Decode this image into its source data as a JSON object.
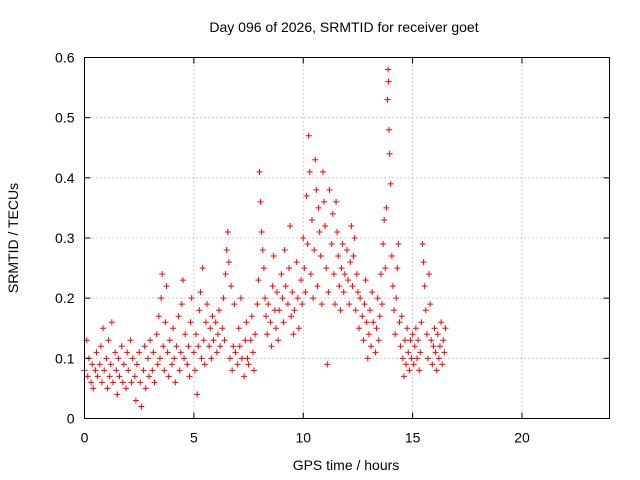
{
  "chart_data": {
    "type": "scatter",
    "title": "Day 096 of 2026, SRMTID for receiver goet",
    "xlabel": "GPS time / hours",
    "ylabel": "SRMTID / TECUs",
    "xlim": [
      0,
      24
    ],
    "ylim": [
      0,
      0.6
    ],
    "x_ticks": [
      0,
      5,
      10,
      15,
      20
    ],
    "x_tick_labels": [
      "0",
      "5",
      "10",
      "15",
      "20"
    ],
    "y_ticks": [
      0,
      0.1,
      0.2,
      0.3,
      0.4,
      0.5,
      0.6
    ],
    "y_tick_labels": [
      "0",
      "0.1",
      "0.2",
      "0.3",
      "0.4",
      "0.5",
      "0.6"
    ],
    "grid": true,
    "marker": "+",
    "color": "#ff0000",
    "series": [
      {
        "name": "SRMTID",
        "points": [
          [
            0.0,
            0.08
          ],
          [
            0.1,
            0.13
          ],
          [
            0.15,
            0.07
          ],
          [
            0.2,
            0.1
          ],
          [
            0.3,
            0.06
          ],
          [
            0.35,
            0.09
          ],
          [
            0.4,
            0.05
          ],
          [
            0.5,
            0.08
          ],
          [
            0.55,
            0.11
          ],
          [
            0.6,
            0.07
          ],
          [
            0.7,
            0.09
          ],
          [
            0.75,
            0.12
          ],
          [
            0.8,
            0.06
          ],
          [
            0.85,
            0.15
          ],
          [
            0.9,
            0.08
          ],
          [
            1.0,
            0.1
          ],
          [
            1.05,
            0.05
          ],
          [
            1.1,
            0.13
          ],
          [
            1.15,
            0.07
          ],
          [
            1.2,
            0.09
          ],
          [
            1.25,
            0.16
          ],
          [
            1.3,
            0.06
          ],
          [
            1.4,
            0.11
          ],
          [
            1.45,
            0.08
          ],
          [
            1.5,
            0.04
          ],
          [
            1.55,
            0.1
          ],
          [
            1.6,
            0.07
          ],
          [
            1.7,
            0.12
          ],
          [
            1.75,
            0.06
          ],
          [
            1.8,
            0.09
          ],
          [
            1.9,
            0.05
          ],
          [
            1.95,
            0.11
          ],
          [
            2.0,
            0.08
          ],
          [
            2.1,
            0.13
          ],
          [
            2.15,
            0.06
          ],
          [
            2.2,
            0.1
          ],
          [
            2.3,
            0.07
          ],
          [
            2.35,
            0.03
          ],
          [
            2.4,
            0.09
          ],
          [
            2.5,
            0.11
          ],
          [
            2.55,
            0.06
          ],
          [
            2.6,
            0.02
          ],
          [
            2.7,
            0.08
          ],
          [
            2.75,
            0.12
          ],
          [
            2.8,
            0.05
          ],
          [
            2.9,
            0.1
          ],
          [
            2.95,
            0.07
          ],
          [
            3.0,
            0.13
          ],
          [
            3.1,
            0.08
          ],
          [
            3.15,
            0.11
          ],
          [
            3.2,
            0.06
          ],
          [
            3.3,
            0.14
          ],
          [
            3.35,
            0.09
          ],
          [
            3.4,
            0.17
          ],
          [
            3.45,
            0.1
          ],
          [
            3.5,
            0.2
          ],
          [
            3.55,
            0.24
          ],
          [
            3.6,
            0.12
          ],
          [
            3.65,
            0.08
          ],
          [
            3.7,
            0.16
          ],
          [
            3.75,
            0.22
          ],
          [
            3.8,
            0.11
          ],
          [
            3.85,
            0.07
          ],
          [
            3.9,
            0.13
          ],
          [
            4.0,
            0.09
          ],
          [
            4.05,
            0.15
          ],
          [
            4.1,
            0.1
          ],
          [
            4.15,
            0.06
          ],
          [
            4.2,
            0.12
          ],
          [
            4.3,
            0.17
          ],
          [
            4.35,
            0.08
          ],
          [
            4.4,
            0.11
          ],
          [
            4.45,
            0.19
          ],
          [
            4.5,
            0.23
          ],
          [
            4.55,
            0.1
          ],
          [
            4.6,
            0.14
          ],
          [
            4.7,
            0.09
          ],
          [
            4.75,
            0.12
          ],
          [
            4.8,
            0.07
          ],
          [
            4.85,
            0.16
          ],
          [
            4.9,
            0.2
          ],
          [
            5.0,
            0.11
          ],
          [
            5.05,
            0.08
          ],
          [
            5.1,
            0.14
          ],
          [
            5.15,
            0.04
          ],
          [
            5.2,
            0.12
          ],
          [
            5.25,
            0.18
          ],
          [
            5.3,
            0.21
          ],
          [
            5.35,
            0.1
          ],
          [
            5.4,
            0.25
          ],
          [
            5.45,
            0.13
          ],
          [
            5.5,
            0.09
          ],
          [
            5.55,
            0.16
          ],
          [
            5.6,
            0.19
          ],
          [
            5.7,
            0.12
          ],
          [
            5.75,
            0.15
          ],
          [
            5.8,
            0.1
          ],
          [
            5.85,
            0.17
          ],
          [
            5.9,
            0.13
          ],
          [
            6.0,
            0.16
          ],
          [
            6.05,
            0.11
          ],
          [
            6.1,
            0.14
          ],
          [
            6.15,
            0.18
          ],
          [
            6.2,
            0.12
          ],
          [
            6.3,
            0.15
          ],
          [
            6.35,
            0.2
          ],
          [
            6.4,
            0.13
          ],
          [
            6.45,
            0.24
          ],
          [
            6.5,
            0.28
          ],
          [
            6.55,
            0.31
          ],
          [
            6.6,
            0.26
          ],
          [
            6.65,
            0.1
          ],
          [
            6.7,
            0.22
          ],
          [
            6.75,
            0.08
          ],
          [
            6.8,
            0.12
          ],
          [
            6.85,
            0.19
          ],
          [
            6.9,
            0.11
          ],
          [
            7.0,
            0.09
          ],
          [
            7.05,
            0.15
          ],
          [
            7.1,
            0.12
          ],
          [
            7.15,
            0.2
          ],
          [
            7.2,
            0.1
          ],
          [
            7.3,
            0.07
          ],
          [
            7.35,
            0.13
          ],
          [
            7.4,
            0.16
          ],
          [
            7.45,
            0.1
          ],
          [
            7.5,
            0.09
          ],
          [
            7.6,
            0.13
          ],
          [
            7.65,
            0.17
          ],
          [
            7.7,
            0.11
          ],
          [
            7.75,
            0.08
          ],
          [
            7.8,
            0.14
          ],
          [
            7.9,
            0.19
          ],
          [
            7.95,
            0.23
          ],
          [
            8.0,
            0.41
          ],
          [
            8.05,
            0.36
          ],
          [
            8.1,
            0.31
          ],
          [
            8.15,
            0.28
          ],
          [
            8.2,
            0.25
          ],
          [
            8.25,
            0.2
          ],
          [
            8.3,
            0.17
          ],
          [
            8.35,
            0.14
          ],
          [
            8.4,
            0.19
          ],
          [
            8.5,
            0.16
          ],
          [
            8.55,
            0.12
          ],
          [
            8.6,
            0.22
          ],
          [
            8.65,
            0.27
          ],
          [
            8.7,
            0.18
          ],
          [
            8.75,
            0.15
          ],
          [
            8.8,
            0.21
          ],
          [
            8.85,
            0.13
          ],
          [
            8.9,
            0.18
          ],
          [
            9.0,
            0.24
          ],
          [
            9.05,
            0.2
          ],
          [
            9.1,
            0.16
          ],
          [
            9.15,
            0.28
          ],
          [
            9.2,
            0.22
          ],
          [
            9.3,
            0.19
          ],
          [
            9.35,
            0.25
          ],
          [
            9.4,
            0.32
          ],
          [
            9.45,
            0.17
          ],
          [
            9.5,
            0.21
          ],
          [
            9.55,
            0.14
          ],
          [
            9.6,
            0.18
          ],
          [
            9.7,
            0.26
          ],
          [
            9.75,
            0.2
          ],
          [
            9.8,
            0.15
          ],
          [
            9.9,
            0.23
          ],
          [
            9.95,
            0.19
          ],
          [
            10.0,
            0.3
          ],
          [
            10.05,
            0.25
          ],
          [
            10.1,
            0.21
          ],
          [
            10.15,
            0.37
          ],
          [
            10.2,
            0.29
          ],
          [
            10.25,
            0.47
          ],
          [
            10.3,
            0.41
          ],
          [
            10.35,
            0.24
          ],
          [
            10.4,
            0.33
          ],
          [
            10.45,
            0.2
          ],
          [
            10.5,
            0.28
          ],
          [
            10.55,
            0.43
          ],
          [
            10.6,
            0.38
          ],
          [
            10.65,
            0.22
          ],
          [
            10.7,
            0.35
          ],
          [
            10.75,
            0.31
          ],
          [
            10.8,
            0.27
          ],
          [
            10.85,
            0.19
          ],
          [
            10.9,
            0.41
          ],
          [
            10.95,
            0.36
          ],
          [
            11.0,
            0.32
          ],
          [
            11.05,
            0.25
          ],
          [
            11.1,
            0.09
          ],
          [
            11.15,
            0.21
          ],
          [
            11.2,
            0.38
          ],
          [
            11.3,
            0.29
          ],
          [
            11.35,
            0.34
          ],
          [
            11.4,
            0.24
          ],
          [
            11.45,
            0.19
          ],
          [
            11.5,
            0.36
          ],
          [
            11.55,
            0.31
          ],
          [
            11.6,
            0.27
          ],
          [
            11.65,
            0.22
          ],
          [
            11.7,
            0.18
          ],
          [
            11.75,
            0.25
          ],
          [
            11.8,
            0.29
          ],
          [
            11.85,
            0.21
          ],
          [
            11.9,
            0.24
          ],
          [
            12.0,
            0.28
          ],
          [
            12.05,
            0.23
          ],
          [
            12.1,
            0.19
          ],
          [
            12.15,
            0.26
          ],
          [
            12.2,
            0.32
          ],
          [
            12.25,
            0.22
          ],
          [
            12.3,
            0.27
          ],
          [
            12.35,
            0.3
          ],
          [
            12.4,
            0.18
          ],
          [
            12.45,
            0.24
          ],
          [
            12.5,
            0.21
          ],
          [
            12.55,
            0.15
          ],
          [
            12.6,
            0.2
          ],
          [
            12.7,
            0.17
          ],
          [
            12.75,
            0.13
          ],
          [
            12.8,
            0.19
          ],
          [
            12.85,
            0.23
          ],
          [
            12.9,
            0.16
          ],
          [
            12.95,
            0.1
          ],
          [
            13.0,
            0.14
          ],
          [
            13.05,
            0.18
          ],
          [
            13.1,
            0.12
          ],
          [
            13.15,
            0.21
          ],
          [
            13.2,
            0.16
          ],
          [
            13.3,
            0.11
          ],
          [
            13.35,
            0.15
          ],
          [
            13.4,
            0.2
          ],
          [
            13.45,
            0.13
          ],
          [
            13.5,
            0.17
          ],
          [
            13.55,
            0.24
          ],
          [
            13.6,
            0.19
          ],
          [
            13.65,
            0.29
          ],
          [
            13.7,
            0.33
          ],
          [
            13.75,
            0.25
          ],
          [
            13.8,
            0.35
          ],
          [
            13.85,
            0.53
          ],
          [
            13.88,
            0.58
          ],
          [
            13.9,
            0.56
          ],
          [
            13.92,
            0.48
          ],
          [
            13.95,
            0.44
          ],
          [
            14.0,
            0.39
          ],
          [
            14.05,
            0.27
          ],
          [
            14.1,
            0.22
          ],
          [
            14.15,
            0.18
          ],
          [
            14.2,
            0.14
          ],
          [
            14.25,
            0.2
          ],
          [
            14.3,
            0.25
          ],
          [
            14.35,
            0.29
          ],
          [
            14.4,
            0.16
          ],
          [
            14.45,
            0.12
          ],
          [
            14.5,
            0.17
          ],
          [
            14.55,
            0.1
          ],
          [
            14.6,
            0.07
          ],
          [
            14.65,
            0.13
          ],
          [
            14.7,
            0.09
          ],
          [
            14.75,
            0.15
          ],
          [
            14.8,
            0.11
          ],
          [
            14.85,
            0.08
          ],
          [
            14.9,
            0.13
          ],
          [
            14.95,
            0.1
          ],
          [
            15.0,
            0.14
          ],
          [
            15.05,
            0.09
          ],
          [
            15.1,
            0.12
          ],
          [
            15.15,
            0.15
          ],
          [
            15.2,
            0.1
          ],
          [
            15.25,
            0.13
          ],
          [
            15.3,
            0.08
          ],
          [
            15.35,
            0.11
          ],
          [
            15.4,
            0.16
          ],
          [
            15.45,
            0.29
          ],
          [
            15.5,
            0.26
          ],
          [
            15.55,
            0.22
          ],
          [
            15.6,
            0.18
          ],
          [
            15.65,
            0.14
          ],
          [
            15.7,
            0.1
          ],
          [
            15.75,
            0.24
          ],
          [
            15.8,
            0.19
          ],
          [
            15.85,
            0.13
          ],
          [
            15.9,
            0.09
          ],
          [
            15.95,
            0.12
          ],
          [
            16.0,
            0.15
          ],
          [
            16.05,
            0.11
          ],
          [
            16.1,
            0.08
          ],
          [
            16.15,
            0.14
          ],
          [
            16.2,
            0.1
          ],
          [
            16.25,
            0.12
          ],
          [
            16.3,
            0.16
          ],
          [
            16.35,
            0.09
          ],
          [
            16.4,
            0.13
          ],
          [
            16.45,
            0.11
          ],
          [
            16.5,
            0.15
          ]
        ]
      }
    ]
  }
}
